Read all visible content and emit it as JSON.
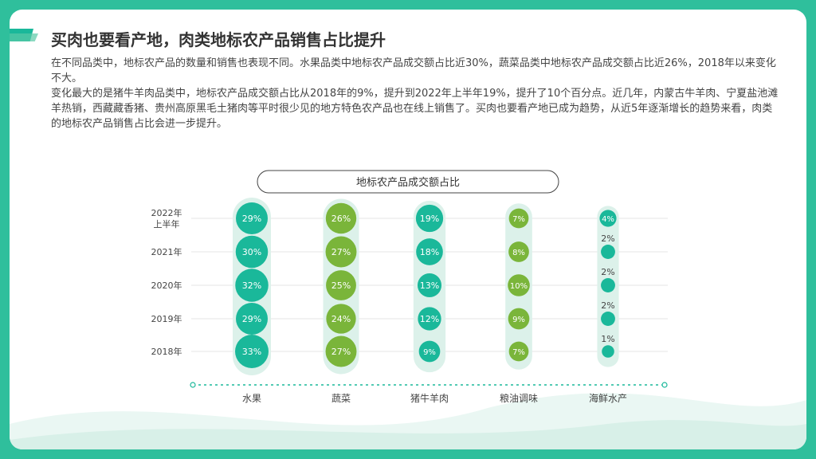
{
  "title": "买肉也要看产地，肉类地标农产品销售占比提升",
  "paragraphs": [
    "在不同品类中，地标农产品的数量和销售也表现不同。水果品类中地标农产品成交额占比近30%，蔬菜品类中地标农产品成交额占比近26%，2018年以来变化不大。",
    "变化最大的是猪牛羊肉品类中，地标农产品成交额占比从2018年的9%，提升到2022年上半年19%，提升了10个百分点。近几年，内蒙古牛羊肉、宁夏盐池滩羊热销，西藏藏香猪、贵州高原黑毛土猪肉等平时很少见的地方特色农产品也在线上销售了。买肉也要看产地已成为趋势，从近5年逐渐增长的趋势来看，肉类的地标农产品销售占比会进一步提升。"
  ],
  "colors": {
    "frame": "#2fbf9c",
    "teal": "#1ab89a",
    "green": "#7ab53a",
    "track": "#dcf1ea",
    "grid": "#e6e6e6"
  },
  "chart_data": {
    "type": "bubble-matrix",
    "title": "地标农产品成交额占比",
    "categories": [
      "水果",
      "蔬菜",
      "猪牛羊肉",
      "粮油调味",
      "海鲜水产"
    ],
    "years": [
      "2018年",
      "2019年",
      "2020年",
      "2021年",
      "2022年上半年"
    ],
    "series": [
      {
        "name": "水果",
        "values": [
          33,
          29,
          32,
          30,
          29
        ]
      },
      {
        "name": "蔬菜",
        "values": [
          27,
          24,
          25,
          27,
          26
        ]
      },
      {
        "name": "猪牛羊肉",
        "values": [
          9,
          12,
          13,
          18,
          19
        ]
      },
      {
        "name": "粮油调味",
        "values": [
          7,
          9,
          10,
          8,
          7
        ]
      },
      {
        "name": "海鲜水产",
        "values": [
          1,
          2,
          2,
          2,
          4
        ]
      }
    ],
    "unit": "%"
  }
}
